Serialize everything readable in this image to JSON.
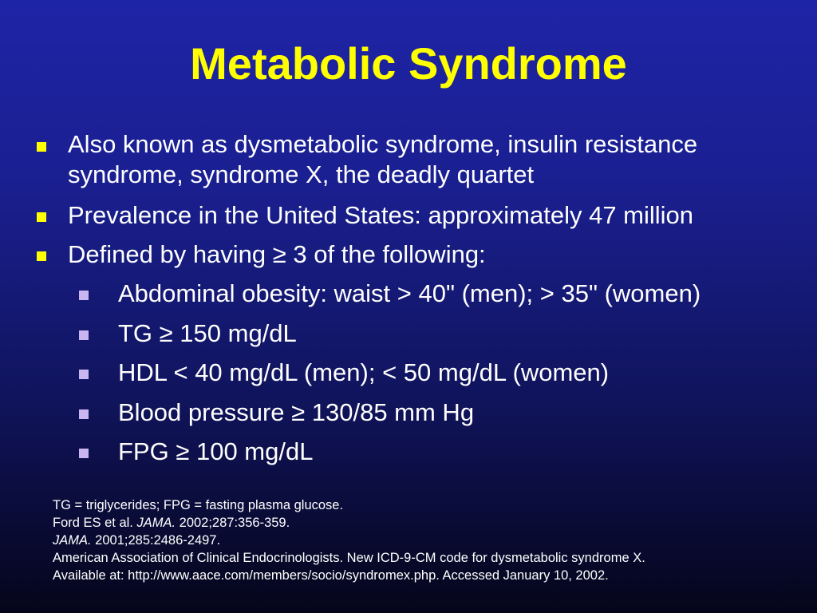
{
  "slide": {
    "title": "Metabolic Syndrome",
    "bullets": [
      {
        "text": "Also known as dysmetabolic syndrome, insulin resistance syndrome, syndrome X, the deadly quartet"
      },
      {
        "text": "Prevalence in the United States: approximately 47 million"
      },
      {
        "text": "Defined by having ≥ 3 of the following:"
      }
    ],
    "sub_bullets": [
      {
        "text": "Abdominal obesity: waist > 40\" (men); > 35\" (women)"
      },
      {
        "text": "TG ≥ 150 mg/dL"
      },
      {
        "text": "HDL < 40 mg/dL (men); < 50 mg/dL (women)"
      },
      {
        "text": "Blood pressure ≥ 130/85 mm Hg"
      },
      {
        "text": "FPG ≥ 100 mg/dL"
      }
    ],
    "footnotes": {
      "abbrev": "TG = triglycerides; FPG = fasting plasma glucose.",
      "ref1_author": "Ford ES et al. ",
      "ref1_journal": "JAMA.",
      "ref1_rest": " 2002;287:356-359.",
      "ref2_journal": "JAMA.",
      "ref2_rest": " 2001;285:2486-2497.",
      "ref3": "American Association of Clinical Endocrinologists. New ICD-9-CM code for dysmetabolic syndrome X.",
      "ref4": "Available at: http://www.aace.com/members/socio/syndromex.php. Accessed January 10, 2002."
    },
    "colors": {
      "title": "#ffff00",
      "body_text": "#ffffff",
      "level1_marker": "#ffff00",
      "level2_marker": "#c9b6f0",
      "background_top": "#1e24a6",
      "background_bottom": "#05051a"
    }
  }
}
